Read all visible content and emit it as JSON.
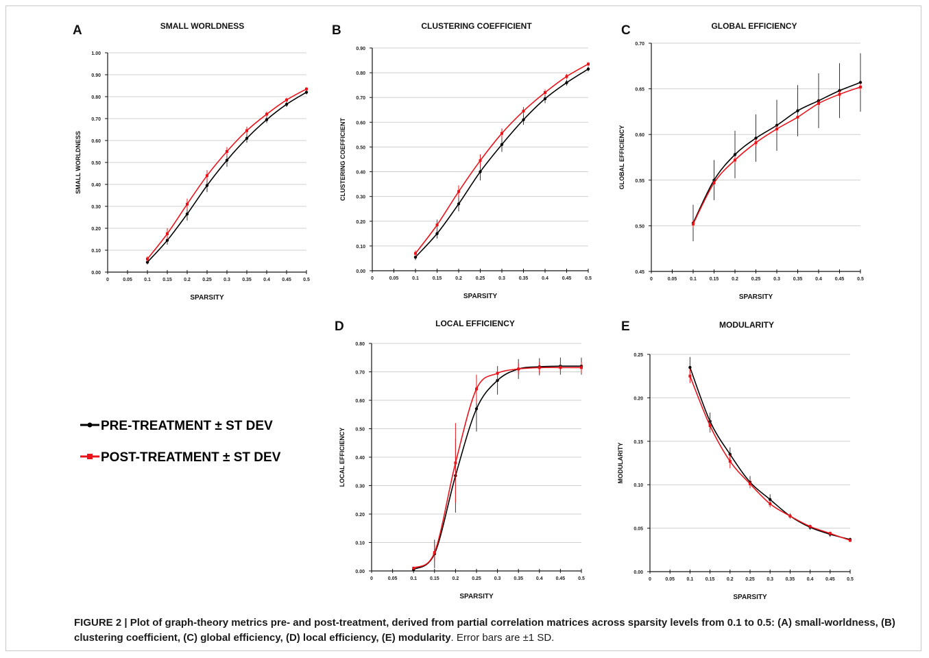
{
  "legend": {
    "pre_label": "PRE-TREATMENT ± ST DEV",
    "post_label": "POST-TREATMENT ± ST DEV",
    "pre_color": "#000000",
    "post_color": "#e8141a"
  },
  "caption": {
    "bold": "FIGURE 2 | Plot of graph-theory metrics pre- and post-treatment, derived from partial correlation matrices across sparsity levels from 0.1 to 0.5: (A) small-worldness, (B) clustering coefficient, (C) global efficiency, (D) local efficiency, (E) modularity",
    "normal": ". Error bars are ±1 SD."
  },
  "chart_data": [
    {
      "panel": "A",
      "type": "line",
      "title": "SMALL WORLDNESS",
      "xlabel": "SPARSITY",
      "ylabel": "SMALL WORLDNESS",
      "xticks": [
        "0",
        "0.05",
        "0.1",
        "0.15",
        "0.2",
        "0.25",
        "0.3",
        "0.35",
        "0.4",
        "0.45",
        "0.5"
      ],
      "yticks": [
        "0.00",
        "0.10",
        "0.20",
        "0.30",
        "0.40",
        "0.50",
        "0.60",
        "0.70",
        "0.80",
        "0.90",
        "1.00"
      ],
      "xlim": [
        0,
        0.5
      ],
      "ylim": [
        0,
        1.0
      ],
      "x": [
        0.1,
        0.15,
        0.2,
        0.25,
        0.3,
        0.35,
        0.4,
        0.45,
        0.5
      ],
      "series": [
        {
          "name": "PRE-TREATMENT ± ST DEV",
          "values": [
            0.045,
            0.145,
            0.265,
            0.395,
            0.51,
            0.61,
            0.695,
            0.765,
            0.82
          ],
          "sd": [
            0.01,
            0.02,
            0.03,
            0.03,
            0.03,
            0.02,
            0.015,
            0.012,
            0.01
          ]
        },
        {
          "name": "POST-TREATMENT ± ST DEV",
          "values": [
            0.06,
            0.175,
            0.31,
            0.44,
            0.55,
            0.645,
            0.72,
            0.785,
            0.835
          ],
          "sd": [
            0.012,
            0.025,
            0.025,
            0.025,
            0.02,
            0.018,
            0.012,
            0.01,
            0.008
          ]
        }
      ]
    },
    {
      "panel": "B",
      "type": "line",
      "title": "CLUSTERING COEFFICIENT",
      "xlabel": "SPARSITY",
      "ylabel": "CLUSTERING COEFFICIENT",
      "xticks": [
        "0",
        "0.05",
        "0.1",
        "0.15",
        "0.2",
        "0.25",
        "0.3",
        "0.35",
        "0.4",
        "0.45",
        "0.5"
      ],
      "yticks": [
        "0.00",
        "0.10",
        "0.20",
        "0.30",
        "0.40",
        "0.50",
        "0.60",
        "0.70",
        "0.80",
        "0.90"
      ],
      "xlim": [
        0,
        0.5
      ],
      "ylim": [
        0,
        0.9
      ],
      "x": [
        0.1,
        0.15,
        0.2,
        0.25,
        0.3,
        0.35,
        0.4,
        0.45,
        0.5
      ],
      "series": [
        {
          "name": "PRE-TREATMENT ± ST DEV",
          "values": [
            0.055,
            0.15,
            0.27,
            0.4,
            0.51,
            0.61,
            0.695,
            0.76,
            0.815
          ],
          "sd": [
            0.012,
            0.02,
            0.03,
            0.035,
            0.03,
            0.02,
            0.018,
            0.012,
            0.01
          ]
        },
        {
          "name": "POST-TREATMENT ± ST DEV",
          "values": [
            0.07,
            0.185,
            0.32,
            0.445,
            0.555,
            0.645,
            0.72,
            0.785,
            0.835
          ],
          "sd": [
            0.012,
            0.022,
            0.025,
            0.025,
            0.02,
            0.016,
            0.012,
            0.01,
            0.008
          ]
        }
      ]
    },
    {
      "panel": "C",
      "type": "line",
      "title": "GLOBAL EFFICIENCY",
      "xlabel": "SPARSITY",
      "ylabel": "GLOBAL EFFICIENCY",
      "xticks": [
        "0",
        "0.05",
        "0.1",
        "0.15",
        "0.2",
        "0.25",
        "0.3",
        "0.35",
        "0.4",
        "0.45",
        "0.5"
      ],
      "yticks": [
        "0.45",
        "0.50",
        "0.55",
        "0.60",
        "0.65",
        "0.70"
      ],
      "xlim": [
        0,
        0.5
      ],
      "ylim": [
        0.45,
        0.7
      ],
      "x": [
        0.1,
        0.15,
        0.2,
        0.25,
        0.3,
        0.35,
        0.4,
        0.45,
        0.5
      ],
      "series": [
        {
          "name": "PRE-TREATMENT ± ST DEV",
          "values": [
            0.503,
            0.55,
            0.578,
            0.596,
            0.61,
            0.626,
            0.637,
            0.648,
            0.657
          ],
          "sd": [
            0.02,
            0.022,
            0.026,
            0.026,
            0.028,
            0.028,
            0.03,
            0.03,
            0.032
          ]
        },
        {
          "name": "POST-TREATMENT ± ST DEV",
          "values": [
            0.502,
            0.547,
            0.572,
            0.591,
            0.606,
            0.619,
            0.634,
            0.644,
            0.652
          ],
          "sd": [
            0.004,
            0.004,
            0.004,
            0.004,
            0.004,
            0.004,
            0.004,
            0.004,
            0.004
          ]
        }
      ]
    },
    {
      "panel": "D",
      "type": "line",
      "title": "LOCAL EFFICIENCY",
      "xlabel": "SPARSITY",
      "ylabel": "LOCAL  EFFICIENCY",
      "xticks": [
        "0",
        "0.05",
        "0.1",
        "0.15",
        "0.2",
        "0.25",
        "0.3",
        "0.35",
        "0.4",
        "0.45",
        "0.5"
      ],
      "yticks": [
        "0.00",
        "0.10",
        "0.20",
        "0.30",
        "0.40",
        "0.50",
        "0.60",
        "0.70",
        "0.80"
      ],
      "xlim": [
        0,
        0.5
      ],
      "ylim": [
        0,
        0.8
      ],
      "x": [
        0.1,
        0.15,
        0.2,
        0.25,
        0.3,
        0.35,
        0.4,
        0.45,
        0.5
      ],
      "series": [
        {
          "name": "PRE-TREATMENT ± ST DEV",
          "values": [
            0.005,
            0.06,
            0.335,
            0.57,
            0.67,
            0.71,
            0.718,
            0.72,
            0.72
          ],
          "sd": [
            0.005,
            0.05,
            0.13,
            0.08,
            0.05,
            0.035,
            0.03,
            0.03,
            0.03
          ]
        },
        {
          "name": "POST-TREATMENT ± ST DEV",
          "values": [
            0.01,
            0.065,
            0.38,
            0.64,
            0.695,
            0.71,
            0.715,
            0.715,
            0.715
          ],
          "sd": [
            0.005,
            0.03,
            0.14,
            0.05,
            0.025,
            0.02,
            0.02,
            0.02,
            0.02
          ]
        }
      ]
    },
    {
      "panel": "E",
      "type": "line",
      "title": "MODULARITY",
      "xlabel": "SPARSITY",
      "ylabel": "MODULARITY",
      "xticks": [
        "0",
        "0.05",
        "0.1",
        "0.15",
        "0.2",
        "0.25",
        "0.3",
        "0.35",
        "0.4",
        "0.45",
        "0.5"
      ],
      "yticks": [
        "0.00",
        "0.05",
        "0.10",
        "0.15",
        "0.20",
        "0.25"
      ],
      "xlim": [
        0,
        0.5
      ],
      "ylim": [
        0,
        0.25
      ],
      "x": [
        0.1,
        0.15,
        0.2,
        0.25,
        0.3,
        0.35,
        0.4,
        0.45,
        0.5
      ],
      "series": [
        {
          "name": "PRE-TREATMENT ± ST DEV",
          "values": [
            0.235,
            0.173,
            0.135,
            0.103,
            0.083,
            0.064,
            0.051,
            0.043,
            0.037
          ],
          "sd": [
            0.012,
            0.01,
            0.008,
            0.007,
            0.006,
            0.003,
            0.003,
            0.003,
            0.002
          ]
        },
        {
          "name": "POST-TREATMENT ± ST DEV",
          "values": [
            0.225,
            0.168,
            0.127,
            0.101,
            0.078,
            0.064,
            0.052,
            0.044,
            0.036
          ],
          "sd": [
            0.008,
            0.008,
            0.008,
            0.005,
            0.004,
            0.002,
            0.002,
            0.002,
            0.002
          ]
        }
      ]
    }
  ]
}
